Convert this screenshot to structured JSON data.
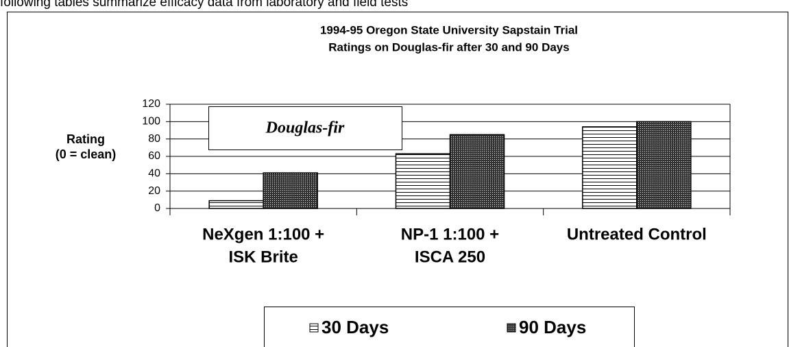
{
  "document_text": "following tables summarize efficacy data from laboratory and field tests",
  "chart_data": {
    "type": "bar",
    "title": [
      "1994-95 Oregon State University Sapstain Trial",
      "Ratings on Douglas-fir after 30 and 90 Days"
    ],
    "annotation": "Douglas-fir",
    "ylabel": [
      "Rating",
      "(0 = clean)"
    ],
    "categories": [
      [
        "NeXgen  1:100 +",
        "ISK Brite"
      ],
      [
        "NP-1  1:100 +",
        "ISCA 250"
      ],
      [
        "Untreated Control"
      ]
    ],
    "series": [
      {
        "name": "30 Days",
        "pattern": "horizontal-lines",
        "color": "#000000",
        "values": [
          9,
          63,
          94
        ]
      },
      {
        "name": "90 Days",
        "pattern": "crosshatch",
        "color": "#000000",
        "values": [
          41,
          85,
          100
        ]
      }
    ],
    "ylim": [
      0,
      120
    ],
    "yticks": [
      0,
      20,
      40,
      60,
      80,
      100,
      120
    ],
    "grid": true,
    "legend": "bottom"
  }
}
